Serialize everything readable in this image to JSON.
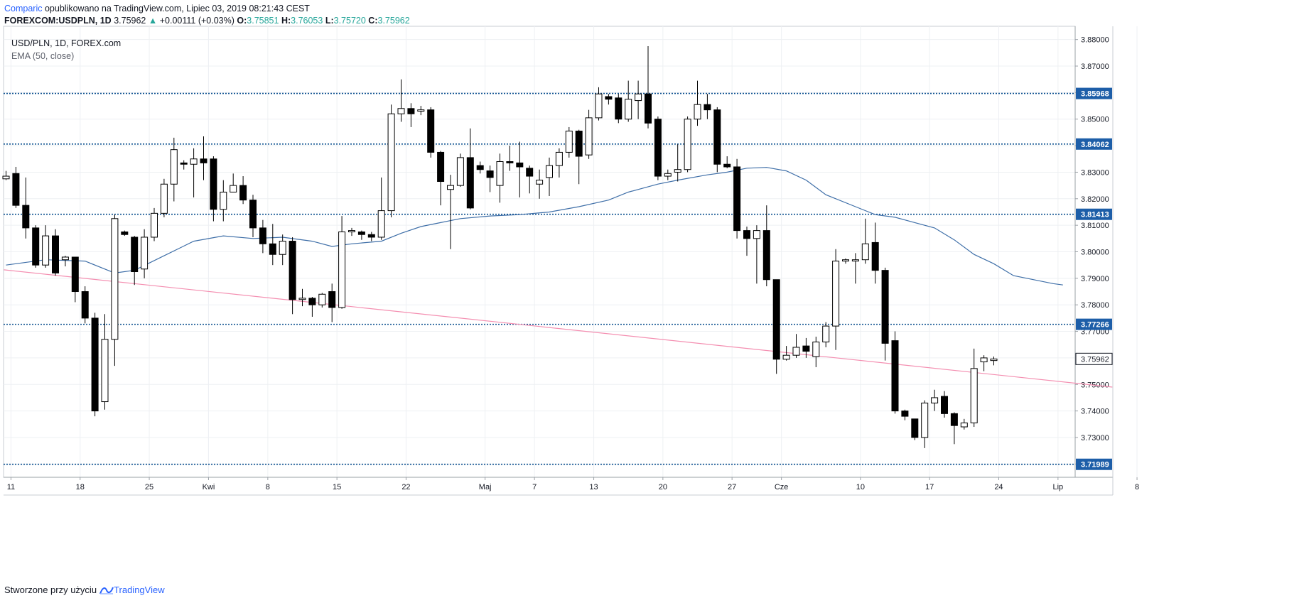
{
  "header": {
    "author": "Comparic",
    "published_text": "opublikowano na TradingView.com, Lipiec 03, 2019 08:21:43 CEST",
    "symbol": "FOREXCOM:USDPLN, 1D",
    "last": "3.75962",
    "change": "+0.00111 (+0.03%)",
    "open_label": "O:",
    "open": "3.75851",
    "high_label": "H:",
    "high": "3.76053",
    "low_label": "L:",
    "low": "3.75720",
    "close_label": "C:",
    "close": "3.75962"
  },
  "legend": {
    "series": "USD/PLN, 1D, FOREX.com",
    "indicator": "EMA (50, close)"
  },
  "footer": {
    "created_with": "Stworzone przy użyciu",
    "brand": "TradingView"
  },
  "colors": {
    "level_line": "#0b4f8f",
    "level_badge": "#1d5ea8",
    "ema": "#3f6fa8",
    "trendline": "#f48fb1",
    "grid": "#eef0f3",
    "bear": "#000000",
    "bull": "#ffffff"
  },
  "chart_data": {
    "type": "candlestick",
    "symbol": "USD/PLN",
    "timeframe": "1D",
    "y_range": [
      3.715,
      3.885
    ],
    "y_ticks": [
      "3.88000",
      "3.87000",
      "3.86000",
      "3.85000",
      "3.84000",
      "3.83000",
      "3.82000",
      "3.81000",
      "3.80000",
      "3.79000",
      "3.78000",
      "3.77000",
      "3.76000",
      "3.75000",
      "3.74000",
      "3.73000",
      "3.72000"
    ],
    "x_ticks": [
      {
        "label": "11",
        "bar": 0.5
      },
      {
        "label": "18",
        "bar": 7.5
      },
      {
        "label": "25",
        "bar": 14.5
      },
      {
        "label": "Kwi",
        "bar": 20.5
      },
      {
        "label": "8",
        "bar": 26.5
      },
      {
        "label": "15",
        "bar": 33.5
      },
      {
        "label": "22",
        "bar": 40.5
      },
      {
        "label": "Maj",
        "bar": 48.5
      },
      {
        "label": "7",
        "bar": 53.5
      },
      {
        "label": "13",
        "bar": 59.5
      },
      {
        "label": "20",
        "bar": 66.5
      },
      {
        "label": "27",
        "bar": 73.5
      },
      {
        "label": "Cze",
        "bar": 78.5
      },
      {
        "label": "10",
        "bar": 86.5
      },
      {
        "label": "17",
        "bar": 93.5
      },
      {
        "label": "24",
        "bar": 100.5
      },
      {
        "label": "Lip",
        "bar": 106.5
      },
      {
        "label": "8",
        "bar": 114.5
      }
    ],
    "horizontal_levels": [
      {
        "value": 3.85968,
        "label": "3.85968"
      },
      {
        "value": 3.84062,
        "label": "3.84062"
      },
      {
        "value": 3.81413,
        "label": "3.81413"
      },
      {
        "value": 3.77266,
        "label": "3.77266"
      },
      {
        "value": 3.71989,
        "label": "3.71989"
      }
    ],
    "last_price": {
      "value": 3.75962,
      "label": "3.75962"
    },
    "trendline": {
      "from": {
        "bar": 0,
        "price": 3.7932
      },
      "to": {
        "bar": 112,
        "price": 3.749
      }
    },
    "candles": [
      [
        3.8275,
        3.8285,
        3.8305,
        3.827
      ],
      [
        3.8295,
        3.8175,
        3.832,
        3.8165
      ],
      [
        3.8175,
        3.809,
        3.828,
        3.805
      ],
      [
        3.809,
        3.795,
        3.81,
        3.794
      ],
      [
        3.795,
        3.806,
        3.81,
        3.794
      ],
      [
        3.806,
        3.792,
        3.8085,
        3.791
      ],
      [
        3.797,
        3.798,
        3.7985,
        3.7945
      ],
      [
        3.798,
        3.785,
        3.798,
        3.781
      ],
      [
        3.785,
        3.775,
        3.787,
        3.773
      ],
      [
        3.775,
        3.74,
        3.777,
        3.738
      ],
      [
        3.7435,
        3.767,
        3.7765,
        3.7405
      ],
      [
        3.767,
        3.8125,
        3.814,
        3.757
      ],
      [
        3.8075,
        3.8065,
        3.808,
        3.806
      ],
      [
        3.8055,
        3.7925,
        3.806,
        3.7875
      ],
      [
        3.7935,
        3.8055,
        3.8085,
        3.79
      ],
      [
        3.8055,
        3.8145,
        3.8165,
        3.804
      ],
      [
        3.8145,
        3.8255,
        3.8275,
        3.813
      ],
      [
        3.8255,
        3.8385,
        3.843,
        3.819
      ],
      [
        3.8335,
        3.833,
        3.8345,
        3.831
      ],
      [
        3.833,
        3.835,
        3.839,
        3.8205
      ],
      [
        3.835,
        3.8335,
        3.8435,
        3.827
      ],
      [
        3.835,
        3.816,
        3.836,
        3.8115
      ],
      [
        3.816,
        3.8225,
        3.827,
        3.8115
      ],
      [
        3.8225,
        3.825,
        3.8295,
        3.8225
      ],
      [
        3.825,
        3.8195,
        3.8285,
        3.818
      ],
      [
        3.8195,
        3.809,
        3.8215,
        3.8055
      ],
      [
        3.809,
        3.803,
        3.812,
        3.7995
      ],
      [
        3.803,
        3.799,
        3.8105,
        3.795
      ],
      [
        3.799,
        3.804,
        3.8065,
        3.795
      ],
      [
        3.804,
        3.782,
        3.8055,
        3.7765
      ],
      [
        3.782,
        3.7825,
        3.786,
        3.7795
      ],
      [
        3.7825,
        3.78,
        3.783,
        3.7755
      ],
      [
        3.78,
        3.784,
        3.7845,
        3.779
      ],
      [
        3.785,
        3.779,
        3.788,
        3.7735
      ],
      [
        3.779,
        3.8075,
        3.8135,
        3.7785
      ],
      [
        3.8075,
        3.808,
        3.809,
        3.806
      ],
      [
        3.8075,
        3.8065,
        3.808,
        3.8045
      ],
      [
        3.8065,
        3.8055,
        3.8075,
        3.804
      ],
      [
        3.8055,
        3.8155,
        3.828,
        3.8045
      ],
      [
        3.8155,
        3.852,
        3.8555,
        3.813
      ],
      [
        3.852,
        3.854,
        3.865,
        3.849
      ],
      [
        3.854,
        3.852,
        3.856,
        3.847
      ],
      [
        3.853,
        3.8535,
        3.855,
        3.8515
      ],
      [
        3.8535,
        3.8375,
        3.8545,
        3.8355
      ],
      [
        3.8375,
        3.8265,
        3.838,
        3.8175
      ],
      [
        3.8235,
        3.825,
        3.829,
        3.801
      ],
      [
        3.825,
        3.8355,
        3.837,
        3.8245
      ],
      [
        3.8355,
        3.8165,
        3.8465,
        3.816
      ],
      [
        3.8325,
        3.831,
        3.834,
        3.8295
      ],
      [
        3.8305,
        3.828,
        3.8325,
        3.8225
      ],
      [
        3.825,
        3.834,
        3.837,
        3.8185
      ],
      [
        3.834,
        3.8335,
        3.84,
        3.8305
      ],
      [
        3.8335,
        3.832,
        3.8415,
        3.8205
      ],
      [
        3.8315,
        3.8285,
        3.8325,
        3.822
      ],
      [
        3.8255,
        3.827,
        3.831,
        3.82
      ],
      [
        3.828,
        3.8325,
        3.8355,
        3.821
      ],
      [
        3.8325,
        3.8375,
        3.839,
        3.828
      ],
      [
        3.8375,
        3.8455,
        3.847,
        3.8355
      ],
      [
        3.8455,
        3.836,
        3.846,
        3.8255
      ],
      [
        3.8365,
        3.8505,
        3.8535,
        3.835
      ],
      [
        3.8505,
        3.8595,
        3.862,
        3.8495
      ],
      [
        3.8585,
        3.8575,
        3.8595,
        3.8555
      ],
      [
        3.858,
        3.85,
        3.8595,
        3.8485
      ],
      [
        3.85,
        3.8575,
        3.8645,
        3.849
      ],
      [
        3.857,
        3.8595,
        3.8645,
        3.85
      ],
      [
        3.8595,
        3.8485,
        3.8775,
        3.8465
      ],
      [
        3.85,
        3.8285,
        3.851,
        3.827
      ],
      [
        3.8285,
        3.8295,
        3.831,
        3.827
      ],
      [
        3.83,
        3.831,
        3.8405,
        3.8265
      ],
      [
        3.831,
        3.85,
        3.851,
        3.83
      ],
      [
        3.85,
        3.8555,
        3.8645,
        3.8475
      ],
      [
        3.8555,
        3.8535,
        3.8595,
        3.85
      ],
      [
        3.8535,
        3.833,
        3.8545,
        3.83
      ],
      [
        3.833,
        3.832,
        3.836,
        3.8315
      ],
      [
        3.832,
        3.808,
        3.835,
        3.805
      ],
      [
        3.808,
        3.805,
        3.8095,
        3.7985
      ],
      [
        3.805,
        3.808,
        3.81,
        3.788
      ],
      [
        3.808,
        3.7895,
        3.8175,
        3.787
      ],
      [
        3.7895,
        3.7595,
        3.7895,
        3.754
      ],
      [
        3.7595,
        3.761,
        3.7645,
        3.759
      ],
      [
        3.761,
        3.764,
        3.769,
        3.76
      ],
      [
        3.7645,
        3.7625,
        3.7675,
        3.76
      ],
      [
        3.7605,
        3.766,
        3.768,
        3.7565
      ],
      [
        3.766,
        3.772,
        3.7735,
        3.764
      ],
      [
        3.772,
        3.7965,
        3.801,
        3.763
      ],
      [
        3.7965,
        3.797,
        3.7975,
        3.7955
      ],
      [
        3.7965,
        3.797,
        3.7995,
        3.788
      ],
      [
        3.797,
        3.803,
        3.8125,
        3.7955
      ],
      [
        3.8035,
        3.793,
        3.811,
        3.788
      ],
      [
        3.793,
        3.7655,
        3.794,
        3.759
      ],
      [
        3.7665,
        3.74,
        3.77,
        3.739
      ],
      [
        3.74,
        3.738,
        3.7405,
        3.7365
      ],
      [
        3.737,
        3.73,
        3.737,
        3.729
      ],
      [
        3.73,
        3.743,
        3.744,
        3.726
      ],
      [
        3.743,
        3.745,
        3.748,
        3.74
      ],
      [
        3.7455,
        3.739,
        3.7475,
        3.7375
      ],
      [
        3.739,
        3.7345,
        3.7395,
        3.7275
      ],
      [
        3.734,
        3.7355,
        3.737,
        3.733
      ],
      [
        3.7355,
        3.756,
        3.7635,
        3.734
      ],
      [
        3.7585,
        3.76,
        3.761,
        3.755
      ],
      [
        3.759,
        3.7596,
        3.7605,
        3.7572
      ]
    ],
    "ema_50": [
      [
        0,
        3.795
      ],
      [
        4,
        3.797
      ],
      [
        8,
        3.7965
      ],
      [
        11,
        3.792
      ],
      [
        13,
        3.793
      ],
      [
        16,
        3.7985
      ],
      [
        19,
        3.804
      ],
      [
        22,
        3.806
      ],
      [
        25,
        3.805
      ],
      [
        28,
        3.8055
      ],
      [
        31,
        3.804
      ],
      [
        33,
        3.802
      ],
      [
        35,
        3.803
      ],
      [
        38,
        3.804
      ],
      [
        40,
        3.807
      ],
      [
        42,
        3.8095
      ],
      [
        44,
        3.811
      ],
      [
        46,
        3.8125
      ],
      [
        49,
        3.8135
      ],
      [
        52,
        3.814
      ],
      [
        55,
        3.815
      ],
      [
        58,
        3.817
      ],
      [
        61,
        3.8195
      ],
      [
        63,
        3.8225
      ],
      [
        66,
        3.8255
      ],
      [
        68,
        3.827
      ],
      [
        71,
        3.829
      ],
      [
        73,
        3.83
      ],
      [
        75,
        3.8315
      ],
      [
        77,
        3.8318
      ],
      [
        79,
        3.8305
      ],
      [
        81,
        3.827
      ],
      [
        83,
        3.8215
      ],
      [
        86,
        3.817
      ],
      [
        88,
        3.814
      ],
      [
        90,
        3.813
      ],
      [
        92,
        3.811
      ],
      [
        94,
        3.809
      ],
      [
        96,
        3.8045
      ],
      [
        98,
        3.799
      ],
      [
        100,
        3.7955
      ],
      [
        102,
        3.791
      ],
      [
        104,
        3.7895
      ],
      [
        106,
        3.788
      ],
      [
        107,
        3.7875
      ]
    ]
  }
}
